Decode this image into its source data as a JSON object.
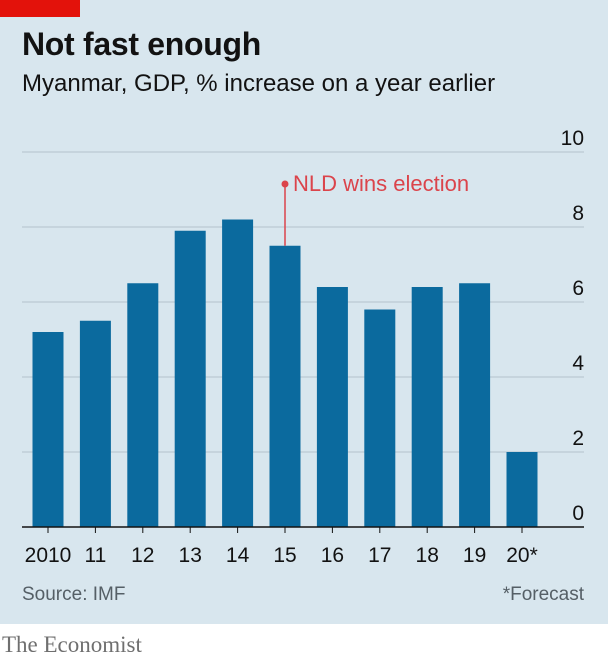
{
  "header": {
    "title": "Not fast enough",
    "subtitle": "Myanmar, GDP, % increase on a year earlier"
  },
  "footer": {
    "source": "Source: IMF",
    "footnote": "*Forecast",
    "brand": "The Economist"
  },
  "colors": {
    "bar": "#0b6a9e",
    "background": "#d8e6ee",
    "accent": "#e3120b",
    "annotation": "#db444b"
  },
  "chart_data": {
    "type": "bar",
    "categories": [
      "2010",
      "11",
      "12",
      "13",
      "14",
      "15",
      "16",
      "17",
      "18",
      "19",
      "20*"
    ],
    "values": [
      5.2,
      5.5,
      6.5,
      7.9,
      8.2,
      7.5,
      6.4,
      5.8,
      6.4,
      6.5,
      2.0
    ],
    "ylim": [
      0,
      10
    ],
    "yticks": [
      0,
      2,
      4,
      6,
      8,
      10
    ],
    "y_axis_side": "right",
    "grid": true,
    "annotation": {
      "text": "NLD wins election",
      "category": "15"
    }
  }
}
